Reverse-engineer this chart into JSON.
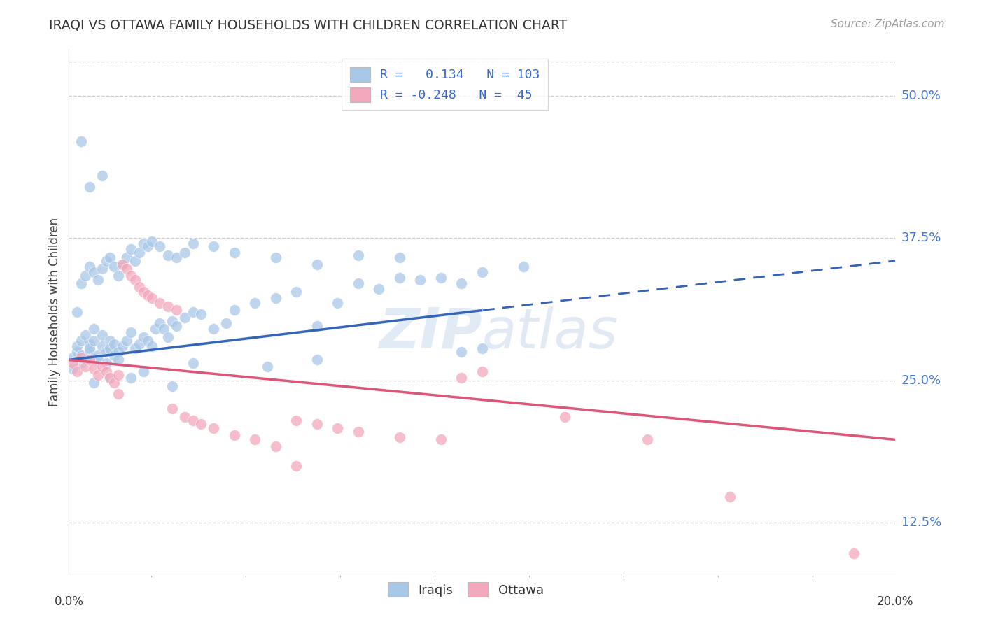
{
  "title": "IRAQI VS OTTAWA FAMILY HOUSEHOLDS WITH CHILDREN CORRELATION CHART",
  "source": "Source: ZipAtlas.com",
  "ylabel": "Family Households with Children",
  "yticks": [
    0.125,
    0.25,
    0.375,
    0.5
  ],
  "ytick_labels": [
    "12.5%",
    "25.0%",
    "37.5%",
    "50.0%"
  ],
  "xtick_labels": [
    "0.0%",
    "20.0%"
  ],
  "xmin": 0.0,
  "xmax": 0.2,
  "ymin": 0.08,
  "ymax": 0.54,
  "iraqis_R": "0.134",
  "iraqis_N": "103",
  "ottawa_R": "-0.248",
  "ottawa_N": "45",
  "iraqis_color": "#a8c8e8",
  "ottawa_color": "#f4a8bc",
  "iraqis_line_color": "#3366bb",
  "ottawa_line_color": "#dd5577",
  "iraqis_line_x0": 0.0,
  "iraqis_line_y0": 0.268,
  "iraqis_line_x1": 0.2,
  "iraqis_line_y1": 0.355,
  "iraqis_line_split": 0.1,
  "ottawa_line_x0": 0.0,
  "ottawa_line_y0": 0.268,
  "ottawa_line_x1": 0.2,
  "ottawa_line_y1": 0.198,
  "iraqis_points_x": [
    0.001,
    0.001,
    0.002,
    0.002,
    0.003,
    0.003,
    0.003,
    0.004,
    0.004,
    0.005,
    0.005,
    0.005,
    0.006,
    0.006,
    0.006,
    0.007,
    0.007,
    0.008,
    0.008,
    0.009,
    0.009,
    0.01,
    0.01,
    0.011,
    0.011,
    0.012,
    0.012,
    0.013,
    0.014,
    0.015,
    0.016,
    0.017,
    0.018,
    0.019,
    0.02,
    0.021,
    0.022,
    0.023,
    0.024,
    0.025,
    0.026,
    0.028,
    0.03,
    0.032,
    0.035,
    0.038,
    0.04,
    0.045,
    0.05,
    0.055,
    0.06,
    0.065,
    0.07,
    0.075,
    0.08,
    0.085,
    0.09,
    0.095,
    0.1,
    0.11,
    0.002,
    0.003,
    0.004,
    0.005,
    0.006,
    0.007,
    0.008,
    0.009,
    0.01,
    0.011,
    0.012,
    0.013,
    0.014,
    0.015,
    0.016,
    0.017,
    0.018,
    0.019,
    0.02,
    0.022,
    0.024,
    0.026,
    0.028,
    0.03,
    0.035,
    0.04,
    0.05,
    0.06,
    0.07,
    0.08,
    0.006,
    0.01,
    0.018,
    0.03,
    0.048,
    0.1,
    0.095,
    0.06,
    0.025,
    0.015,
    0.003,
    0.008,
    0.005
  ],
  "iraqis_points_y": [
    0.27,
    0.26,
    0.275,
    0.28,
    0.285,
    0.272,
    0.265,
    0.29,
    0.268,
    0.282,
    0.275,
    0.278,
    0.27,
    0.285,
    0.295,
    0.272,
    0.268,
    0.28,
    0.29,
    0.275,
    0.265,
    0.285,
    0.278,
    0.282,
    0.272,
    0.275,
    0.268,
    0.28,
    0.285,
    0.292,
    0.278,
    0.282,
    0.288,
    0.285,
    0.28,
    0.295,
    0.3,
    0.295,
    0.288,
    0.302,
    0.298,
    0.305,
    0.31,
    0.308,
    0.295,
    0.3,
    0.312,
    0.318,
    0.322,
    0.328,
    0.298,
    0.318,
    0.335,
    0.33,
    0.34,
    0.338,
    0.34,
    0.335,
    0.345,
    0.35,
    0.31,
    0.335,
    0.342,
    0.35,
    0.345,
    0.338,
    0.348,
    0.355,
    0.358,
    0.35,
    0.342,
    0.352,
    0.358,
    0.365,
    0.355,
    0.362,
    0.37,
    0.368,
    0.372,
    0.368,
    0.36,
    0.358,
    0.362,
    0.37,
    0.368,
    0.362,
    0.358,
    0.352,
    0.36,
    0.358,
    0.248,
    0.252,
    0.258,
    0.265,
    0.262,
    0.278,
    0.275,
    0.268,
    0.245,
    0.252,
    0.46,
    0.43,
    0.42
  ],
  "ottawa_points_x": [
    0.001,
    0.002,
    0.003,
    0.004,
    0.005,
    0.006,
    0.007,
    0.008,
    0.009,
    0.01,
    0.011,
    0.012,
    0.013,
    0.014,
    0.015,
    0.016,
    0.017,
    0.018,
    0.019,
    0.02,
    0.022,
    0.024,
    0.026,
    0.028,
    0.03,
    0.032,
    0.035,
    0.04,
    0.045,
    0.05,
    0.055,
    0.06,
    0.065,
    0.07,
    0.08,
    0.09,
    0.095,
    0.1,
    0.12,
    0.14,
    0.16,
    0.19,
    0.055,
    0.025,
    0.012
  ],
  "ottawa_points_y": [
    0.265,
    0.258,
    0.27,
    0.262,
    0.268,
    0.26,
    0.255,
    0.262,
    0.258,
    0.252,
    0.248,
    0.255,
    0.352,
    0.348,
    0.342,
    0.338,
    0.332,
    0.328,
    0.325,
    0.322,
    0.318,
    0.315,
    0.312,
    0.218,
    0.215,
    0.212,
    0.208,
    0.202,
    0.198,
    0.192,
    0.215,
    0.212,
    0.208,
    0.205,
    0.2,
    0.198,
    0.252,
    0.258,
    0.218,
    0.198,
    0.148,
    0.098,
    0.175,
    0.225,
    0.238
  ]
}
